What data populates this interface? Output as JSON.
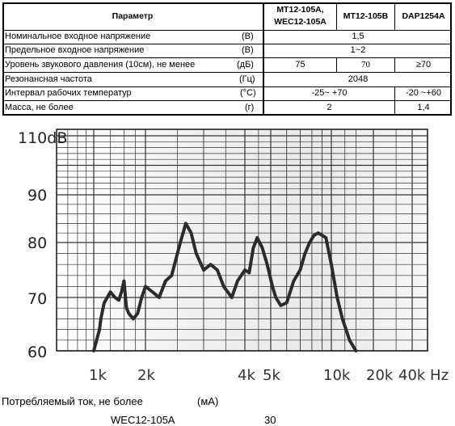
{
  "table": {
    "header": {
      "param": "Параметр",
      "col1": "MT12-105A,\nWEC12-105A",
      "col1_line1": "MT12-105A,",
      "col1_line2": "WEC12-105A",
      "col2": "MT12-105B",
      "col3": "DAP1254A"
    },
    "rows": [
      {
        "name": "Номинальное входное напряжение",
        "unit": "(В)",
        "merged": "1,5"
      },
      {
        "name": "Предельное входное напряжение",
        "unit": "(В)",
        "merged": "1~2"
      },
      {
        "name": "Уровень звукового давления (10см), не менее",
        "unit": "(дБ)",
        "v1": "75",
        "v2": "70",
        "v3": "≥70"
      },
      {
        "name": "Резонансная частота",
        "unit": "(Гц)",
        "merged": "2048"
      },
      {
        "name": "Интервал рабочих температур",
        "unit": "(°С)",
        "v12": "-25~ +70",
        "v3": "-20 ~+60"
      },
      {
        "name": "Масса, не более",
        "unit": "(г)",
        "v12": "2",
        "v3": "1,4"
      }
    ]
  },
  "chart_data": {
    "type": "line",
    "xscale": "log",
    "y_top_label": "110dB",
    "y_ticks": [
      "60",
      "70",
      "80",
      "90"
    ],
    "x_ticks": [
      "1k",
      "2k",
      "4k",
      "5k",
      "10k",
      "20k",
      "40k Hz"
    ],
    "ylim": [
      60,
      110
    ],
    "xlim_hz": [
      600,
      48000
    ],
    "grid": true,
    "series": [
      {
        "x": [
          1000,
          1080,
          1100,
          1150,
          1250,
          1330,
          1400,
          1450,
          1500,
          1550,
          1600,
          1700,
          1800,
          1900,
          2000,
          2100,
          2200,
          2300,
          2400,
          2550,
          2650,
          2750,
          2850,
          3000,
          3150,
          3300,
          3450,
          3650,
          3800,
          4000,
          4150,
          4300,
          4450,
          4650,
          4850,
          5100,
          5300,
          5600,
          6000,
          6500,
          7000,
          7400,
          7800,
          8200,
          8600,
          9400,
          10000,
          11000,
          12000,
          13500,
          15000
        ],
        "y": [
          60,
          64,
          66,
          69,
          71,
          70,
          69.5,
          71,
          73,
          68,
          67,
          66,
          67,
          70,
          72,
          71,
          70,
          73,
          74,
          80,
          84,
          82,
          78,
          75,
          76,
          75,
          72,
          70,
          73,
          75,
          74.5,
          79,
          81,
          79,
          76,
          72,
          70,
          68.5,
          69,
          73,
          75,
          78,
          80,
          81.5,
          82,
          81,
          76,
          70,
          66,
          62,
          60
        ]
      }
    ]
  },
  "footer": {
    "current_label": "Потребляемый ток, не более",
    "current_unit": "(мА)",
    "model": "WEC12-105A",
    "value": "30"
  }
}
